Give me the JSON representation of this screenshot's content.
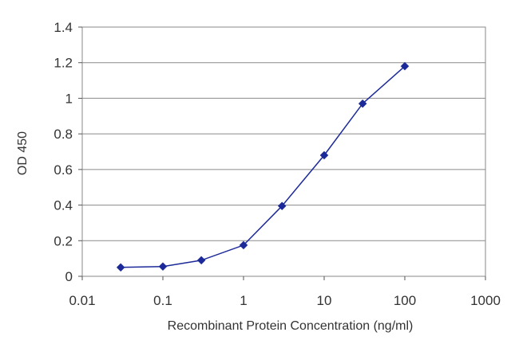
{
  "chart_data": {
    "type": "line",
    "xlabel": "Recombinant Protein Concentration (ng/ml)",
    "ylabel": "OD 450",
    "x_scale": "log",
    "xlim": [
      0.01,
      1000
    ],
    "ylim": [
      0,
      1.4
    ],
    "x_ticks": [
      "0.01",
      "0.1",
      "1",
      "10",
      "100",
      "1000"
    ],
    "y_ticks": [
      "0",
      "0.2",
      "0.4",
      "0.6",
      "0.8",
      "1",
      "1.2",
      "1.4"
    ],
    "grid": "horizontal",
    "series": [
      {
        "x": [
          0.03,
          0.1,
          0.3,
          1,
          3,
          10,
          30,
          100
        ],
        "y": [
          0.05,
          0.055,
          0.09,
          0.175,
          0.395,
          0.68,
          0.97,
          1.18
        ],
        "color": "#1c2a99"
      }
    ]
  }
}
